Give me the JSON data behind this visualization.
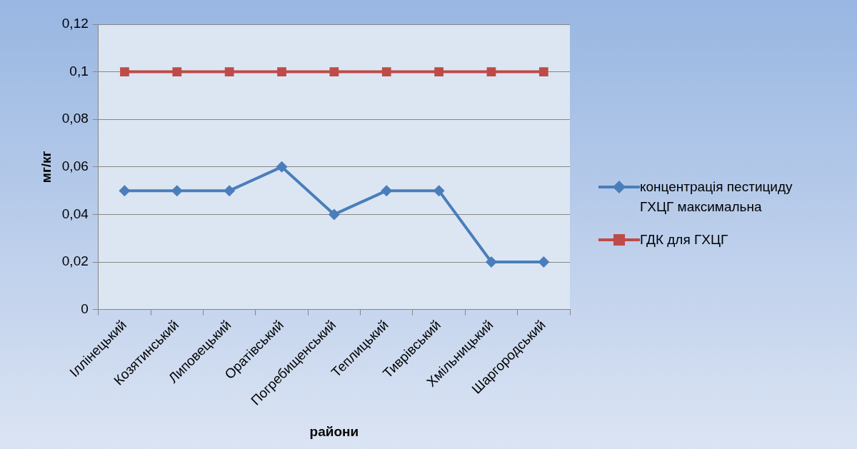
{
  "chart_data": {
    "type": "line",
    "xlabel": "райони",
    "ylabel": "мг/кг",
    "categories": [
      "Іллінецький",
      "Козятинський",
      "Липовецький",
      "Оратівський",
      "Погребищенський",
      "Теплицький",
      "Тиврівський",
      "Хмільницький",
      "Шаргородський"
    ],
    "series": [
      {
        "name": "концентрація пестициду ГХЦГ максимальна",
        "color": "#4a7ebb",
        "marker": "diamond",
        "values": [
          0.05,
          0.05,
          0.05,
          0.06,
          0.04,
          0.05,
          0.05,
          0.02,
          0.02
        ]
      },
      {
        "name": "ГДК для ГХЦГ",
        "color": "#be4b48",
        "marker": "square",
        "values": [
          0.1,
          0.1,
          0.1,
          0.1,
          0.1,
          0.1,
          0.1,
          0.1,
          0.1
        ]
      }
    ],
    "ylim": [
      0,
      0.12
    ],
    "yticks": [
      {
        "value": 0,
        "label": "0"
      },
      {
        "value": 0.02,
        "label": "0,02"
      },
      {
        "value": 0.04,
        "label": "0,04"
      },
      {
        "value": 0.06,
        "label": "0,06"
      },
      {
        "value": 0.08,
        "label": "0,08"
      },
      {
        "value": 0.1,
        "label": "0,1"
      },
      {
        "value": 0.12,
        "label": "0,12"
      }
    ],
    "grid": "y",
    "legend": "right",
    "line_style": "solid"
  }
}
